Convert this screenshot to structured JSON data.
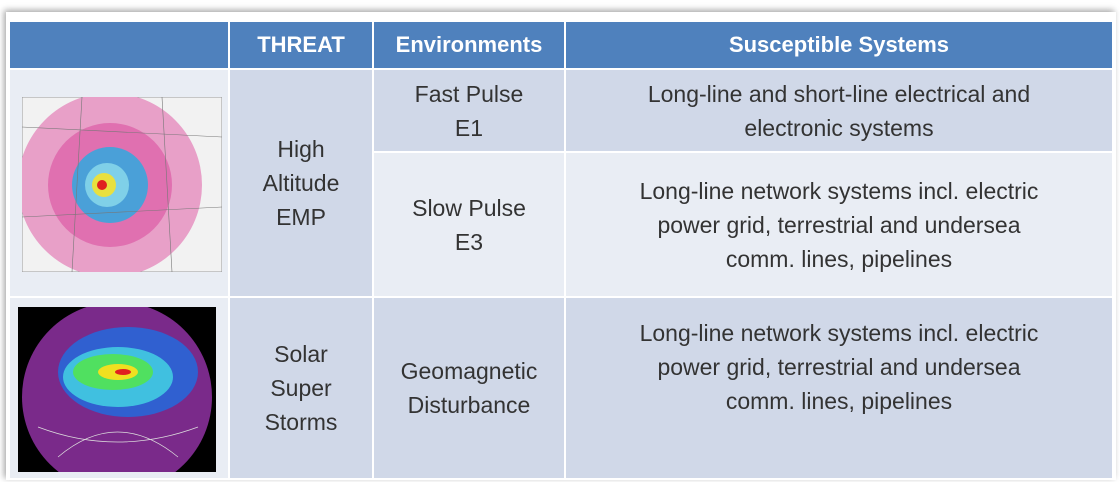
{
  "table": {
    "header": [
      "THREAT",
      "Environments",
      "Susceptible Systems"
    ],
    "threats": [
      {
        "name": "High\nAltitude\nEMP",
        "environments": [
          {
            "name": "Fast Pulse\nE1",
            "systems": "Long-line and short-line electrical and\nelectronic systems"
          },
          {
            "name": "Slow Pulse\nE3",
            "systems": "Long-line network systems incl. electric\npower grid, terrestrial and undersea\ncomm. lines, pipelines"
          }
        ]
      },
      {
        "name": "Solar\nSuper\nStorms",
        "environments": [
          {
            "name": "Geomagnetic\nDisturbance",
            "systems": "Long-line network systems incl. electric\npower grid, terrestrial and undersea\ncomm. lines, pipelines"
          }
        ]
      }
    ]
  }
}
